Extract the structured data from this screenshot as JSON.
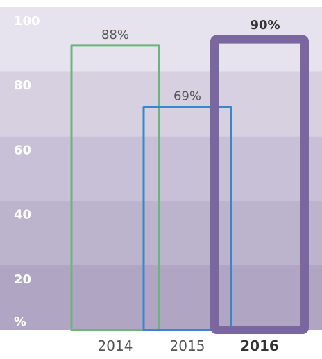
{
  "chart_data": {
    "type": "bar",
    "categories": [
      "2014",
      "2015",
      "2016"
    ],
    "values": [
      88,
      69,
      90
    ],
    "data_labels": [
      "88%",
      "69%",
      "90%"
    ],
    "highlight_index": 2,
    "ylim": [
      0,
      100
    ],
    "yticks": [
      20,
      40,
      60,
      80,
      100
    ],
    "unit_label": "%",
    "grid": false,
    "colors": {
      "bars": [
        "#6cb57a",
        "#3a86c8",
        "#7b67a0"
      ],
      "bands": [
        "#b0a6c4",
        "#bcb3cc",
        "#c8c0d6",
        "#d6d0e0",
        "#e7e3ee"
      ]
    }
  }
}
